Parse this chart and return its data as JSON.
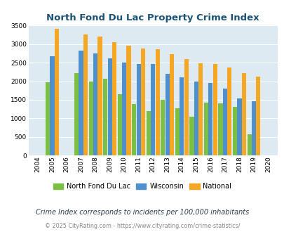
{
  "title": "North Fond Du Lac Property Crime Index",
  "years": [
    2004,
    2005,
    2006,
    2007,
    2008,
    2009,
    2010,
    2011,
    2012,
    2013,
    2014,
    2015,
    2016,
    2017,
    2018,
    2019,
    2020
  ],
  "north_fond_du_lac": [
    0,
    1975,
    0,
    2225,
    2000,
    2075,
    1650,
    1390,
    1200,
    1490,
    1280,
    1050,
    1420,
    1400,
    1300,
    575,
    0
  ],
  "wisconsin": [
    0,
    2665,
    0,
    2825,
    2740,
    2610,
    2510,
    2460,
    2465,
    2190,
    2095,
    1995,
    1950,
    1800,
    1545,
    1455,
    0
  ],
  "national": [
    0,
    3420,
    0,
    3260,
    3205,
    3045,
    2950,
    2890,
    2855,
    2720,
    2590,
    2490,
    2465,
    2370,
    2210,
    2120,
    0
  ],
  "green_color": "#7bc043",
  "blue_color": "#4e8fce",
  "orange_color": "#f5a623",
  "background_color": "#ddeaf2",
  "title_color": "#1a5276",
  "subtitle": "Crime Index corresponds to incidents per 100,000 inhabitants",
  "footer": "© 2025 CityRating.com - https://www.cityrating.com/crime-statistics/",
  "ylim": [
    0,
    3500
  ],
  "yticks": [
    0,
    500,
    1000,
    1500,
    2000,
    2500,
    3000,
    3500
  ]
}
